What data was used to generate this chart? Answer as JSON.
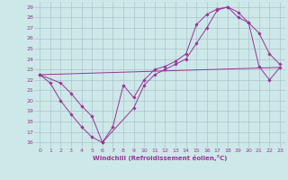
{
  "bg_color": "#cde8e8",
  "grid_color": "#aac4cc",
  "line_color": "#993399",
  "xlabel": "Windchill (Refroidissement éolien,°C)",
  "xlim": [
    -0.5,
    23.5
  ],
  "ylim": [
    15.5,
    29.5
  ],
  "yticks": [
    16,
    17,
    18,
    19,
    20,
    21,
    22,
    23,
    24,
    25,
    26,
    27,
    28,
    29
  ],
  "xticks": [
    0,
    1,
    2,
    3,
    4,
    5,
    6,
    7,
    8,
    9,
    10,
    11,
    12,
    13,
    14,
    15,
    16,
    17,
    18,
    19,
    20,
    21,
    22,
    23
  ],
  "line1_x": [
    0,
    1,
    2,
    3,
    4,
    5,
    6,
    7,
    8,
    9,
    10,
    11,
    12,
    13,
    14,
    15,
    16,
    17,
    18,
    19,
    20,
    21,
    22,
    23
  ],
  "line1_y": [
    22.5,
    21.7,
    20.0,
    18.7,
    17.5,
    16.5,
    16.0,
    17.5,
    21.5,
    20.3,
    22.0,
    23.0,
    23.3,
    23.8,
    24.5,
    27.3,
    28.3,
    28.8,
    29.0,
    28.5,
    27.5,
    26.5,
    24.5,
    23.5
  ],
  "line2_x": [
    0,
    2,
    3,
    4,
    5,
    6,
    9,
    10,
    11,
    12,
    13,
    14,
    15,
    16,
    17,
    18,
    19,
    20,
    21,
    22,
    23
  ],
  "line2_y": [
    22.5,
    21.7,
    20.7,
    19.5,
    18.5,
    16.0,
    19.3,
    21.5,
    22.5,
    23.0,
    23.5,
    24.0,
    25.5,
    27.0,
    28.7,
    29.0,
    28.0,
    27.5,
    23.3,
    22.0,
    23.2
  ],
  "line3_x": [
    0,
    23
  ],
  "line3_y": [
    22.5,
    23.2
  ]
}
